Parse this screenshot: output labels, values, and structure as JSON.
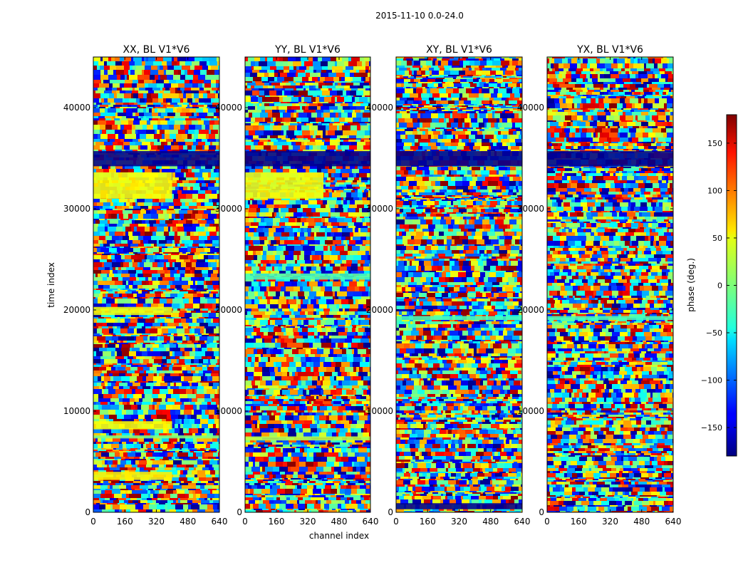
{
  "suptitle": "2015-11-10 0.0-24.0",
  "chart_data": [
    {
      "type": "heatmap",
      "title": "XX, BL V1*V6",
      "xlabel": "channel index",
      "ylabel": "time index",
      "xlim": [
        0,
        640
      ],
      "ylim": [
        0,
        45000
      ],
      "xticks": [
        0,
        160,
        320,
        480,
        640
      ],
      "yticks": [
        0,
        10000,
        20000,
        30000,
        40000
      ],
      "value": "phase (deg.)",
      "value_range": [
        -180,
        180
      ],
      "bands": [
        {
          "y": [
            31000,
            33600
          ],
          "x": [
            0,
            400
          ],
          "phase": 45
        },
        {
          "y": [
            34200,
            35700
          ],
          "x": [
            0,
            640
          ],
          "phase": -175
        },
        {
          "y": [
            19500,
            20300
          ],
          "x": [
            0,
            400
          ],
          "phase": 40
        },
        {
          "y": [
            3200,
            4000
          ],
          "x": [
            0,
            400
          ],
          "phase": 50
        },
        {
          "y": [
            8200,
            9000
          ],
          "x": [
            0,
            400
          ],
          "phase": 45
        },
        {
          "y": [
            7300,
            7600
          ],
          "x": [
            0,
            640
          ],
          "phase": 0
        }
      ]
    },
    {
      "type": "heatmap",
      "title": "YY, BL V1*V6",
      "xlabel": "channel index",
      "ylabel": "",
      "xlim": [
        0,
        640
      ],
      "ylim": [
        0,
        45000
      ],
      "xticks": [
        0,
        160,
        320,
        480,
        640
      ],
      "yticks": [
        0,
        10000,
        20000,
        30000,
        40000
      ],
      "value": "phase (deg.)",
      "value_range": [
        -180,
        180
      ],
      "bands": [
        {
          "y": [
            31000,
            33600
          ],
          "x": [
            0,
            400
          ],
          "phase": 40
        },
        {
          "y": [
            34200,
            35700
          ],
          "x": [
            0,
            640
          ],
          "phase": -175
        },
        {
          "y": [
            23000,
            23600
          ],
          "x": [
            0,
            640
          ],
          "phase": -20
        },
        {
          "y": [
            7100,
            7500
          ],
          "x": [
            0,
            640
          ],
          "phase": 20
        }
      ]
    },
    {
      "type": "heatmap",
      "title": "XY, BL V1*V6",
      "xlabel": "channel index",
      "ylabel": "",
      "xlim": [
        0,
        640
      ],
      "ylim": [
        0,
        45000
      ],
      "xticks": [
        0,
        160,
        320,
        480,
        640
      ],
      "yticks": [
        0,
        10000,
        20000,
        30000,
        40000
      ],
      "value": "phase (deg.)",
      "value_range": [
        -180,
        180
      ],
      "bands": [
        {
          "y": [
            34200,
            35700
          ],
          "x": [
            0,
            640
          ],
          "phase": -175
        },
        {
          "y": [
            19000,
            19400
          ],
          "x": [
            0,
            640
          ],
          "phase": -20
        },
        {
          "y": [
            300,
            900
          ],
          "x": [
            0,
            640
          ],
          "phase": -175
        }
      ]
    },
    {
      "type": "heatmap",
      "title": "YX, BL V1*V6",
      "xlabel": "channel index",
      "ylabel": "",
      "xlim": [
        0,
        640
      ],
      "ylim": [
        0,
        45000
      ],
      "xticks": [
        0,
        160,
        320,
        480,
        640
      ],
      "yticks": [
        0,
        10000,
        20000,
        30000,
        40000
      ],
      "value": "phase (deg.)",
      "value_range": [
        -180,
        180
      ],
      "bands": [
        {
          "y": [
            34200,
            35700
          ],
          "x": [
            0,
            640
          ],
          "phase": -175
        },
        {
          "y": [
            19000,
            19400
          ],
          "x": [
            0,
            640
          ],
          "phase": -20
        }
      ]
    }
  ],
  "colorbar": {
    "label": "phase (deg.)",
    "range": [
      -180,
      180
    ],
    "ticks": [
      -150,
      -100,
      -50,
      0,
      50,
      100,
      150
    ],
    "tick_labels": [
      "−150",
      "−100",
      "−50",
      "0",
      "50",
      "100",
      "150"
    ],
    "colormap": "jet"
  }
}
